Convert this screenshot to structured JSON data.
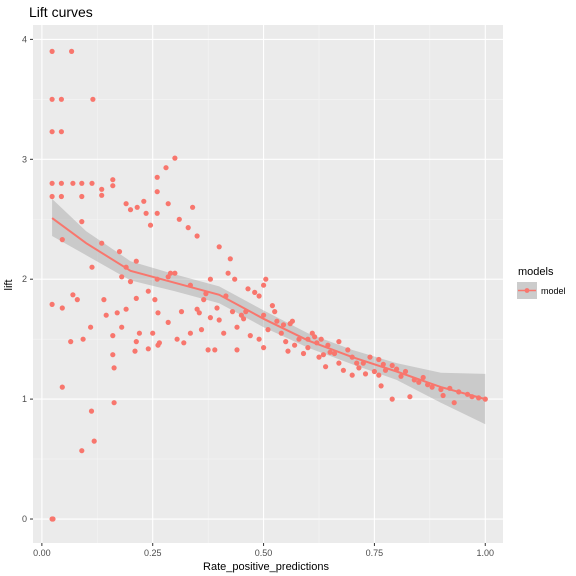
{
  "chart_data": {
    "type": "scatter",
    "title": "Lift curves",
    "xlabel": "Rate_positive_predictions",
    "ylabel": "lift",
    "xlim": [
      -0.02,
      1.04
    ],
    "ylim": [
      -0.2,
      4.12
    ],
    "x_ticks": [
      0.0,
      0.25,
      0.5,
      0.75,
      1.0
    ],
    "x_tick_labels": [
      "0.00",
      "0.25",
      "0.50",
      "0.75",
      "1.00"
    ],
    "y_ticks": [
      0,
      1,
      2,
      3,
      4
    ],
    "y_tick_labels": [
      "0",
      "1",
      "2",
      "3",
      "4"
    ],
    "grid": true,
    "legend": {
      "title": "models",
      "position": "right",
      "entries": [
        "model"
      ]
    },
    "colors": {
      "points": "#F8766D",
      "smooth": "#F8766D",
      "ribbon": "#999999",
      "panel": "#EBEBEB",
      "grid": "#FFFFFF"
    },
    "series": [
      {
        "name": "model",
        "points": [
          [
            0.023,
            3.9
          ],
          [
            0.023,
            3.5
          ],
          [
            0.023,
            3.23
          ],
          [
            0.023,
            2.8
          ],
          [
            0.023,
            2.69
          ],
          [
            0.023,
            1.79
          ],
          [
            0.023,
            0.0
          ],
          [
            0.025,
            0.0
          ],
          [
            0.067,
            3.9
          ],
          [
            0.044,
            3.5
          ],
          [
            0.044,
            3.23
          ],
          [
            0.044,
            2.8
          ],
          [
            0.044,
            2.69
          ],
          [
            0.046,
            2.33
          ],
          [
            0.046,
            1.76
          ],
          [
            0.046,
            1.1
          ],
          [
            0.07,
            2.8
          ],
          [
            0.07,
            1.87
          ],
          [
            0.065,
            1.48
          ],
          [
            0.08,
            1.83
          ],
          [
            0.09,
            2.8
          ],
          [
            0.09,
            2.69
          ],
          [
            0.09,
            2.48
          ],
          [
            0.093,
            1.5
          ],
          [
            0.09,
            0.57
          ],
          [
            0.115,
            3.5
          ],
          [
            0.113,
            2.8
          ],
          [
            0.113,
            2.1
          ],
          [
            0.11,
            1.6
          ],
          [
            0.112,
            0.9
          ],
          [
            0.118,
            0.65
          ],
          [
            0.135,
            2.75
          ],
          [
            0.135,
            2.7
          ],
          [
            0.135,
            2.3
          ],
          [
            0.14,
            1.83
          ],
          [
            0.145,
            1.7
          ],
          [
            0.16,
            2.83
          ],
          [
            0.16,
            2.78
          ],
          [
            0.16,
            1.53
          ],
          [
            0.16,
            1.37
          ],
          [
            0.163,
            1.26
          ],
          [
            0.163,
            0.97
          ],
          [
            0.175,
            2.23
          ],
          [
            0.17,
            1.72
          ],
          [
            0.18,
            2.02
          ],
          [
            0.18,
            1.6
          ],
          [
            0.19,
            2.63
          ],
          [
            0.19,
            2.1
          ],
          [
            0.19,
            1.75
          ],
          [
            0.2,
            2.58
          ],
          [
            0.2,
            1.98
          ],
          [
            0.21,
            1.4
          ],
          [
            0.213,
            1.48
          ],
          [
            0.213,
            1.84
          ],
          [
            0.213,
            2.15
          ],
          [
            0.215,
            2.6
          ],
          [
            0.22,
            1.55
          ],
          [
            0.23,
            2.65
          ],
          [
            0.235,
            2.55
          ],
          [
            0.24,
            1.9
          ],
          [
            0.24,
            1.42
          ],
          [
            0.245,
            2.45
          ],
          [
            0.25,
            1.55
          ],
          [
            0.255,
            1.83
          ],
          [
            0.26,
            2.85
          ],
          [
            0.26,
            2.73
          ],
          [
            0.26,
            2.55
          ],
          [
            0.26,
            2.0
          ],
          [
            0.262,
            1.72
          ],
          [
            0.262,
            1.45
          ],
          [
            0.265,
            1.47
          ],
          [
            0.28,
            2.93
          ],
          [
            0.285,
            2.63
          ],
          [
            0.285,
            2.02
          ],
          [
            0.285,
            1.64
          ],
          [
            0.29,
            2.05
          ],
          [
            0.3,
            3.01
          ],
          [
            0.3,
            2.05
          ],
          [
            0.305,
            1.5
          ],
          [
            0.31,
            2.5
          ],
          [
            0.315,
            1.73
          ],
          [
            0.32,
            1.47
          ],
          [
            0.33,
            2.43
          ],
          [
            0.335,
            1.95
          ],
          [
            0.335,
            1.55
          ],
          [
            0.34,
            2.6
          ],
          [
            0.35,
            2.36
          ],
          [
            0.35,
            1.75
          ],
          [
            0.355,
            1.72
          ],
          [
            0.36,
            1.58
          ],
          [
            0.365,
            1.83
          ],
          [
            0.37,
            1.88
          ],
          [
            0.375,
            1.41
          ],
          [
            0.38,
            2.0
          ],
          [
            0.38,
            1.68
          ],
          [
            0.39,
            1.41
          ],
          [
            0.395,
            1.76
          ],
          [
            0.4,
            2.27
          ],
          [
            0.4,
            1.66
          ],
          [
            0.41,
            1.55
          ],
          [
            0.415,
            1.86
          ],
          [
            0.42,
            2.05
          ],
          [
            0.425,
            2.17
          ],
          [
            0.43,
            1.73
          ],
          [
            0.435,
            2.0
          ],
          [
            0.44,
            1.6
          ],
          [
            0.44,
            1.41
          ],
          [
            0.45,
            1.7
          ],
          [
            0.455,
            1.67
          ],
          [
            0.46,
            1.73
          ],
          [
            0.465,
            1.92
          ],
          [
            0.47,
            1.53
          ],
          [
            0.48,
            1.89
          ],
          [
            0.49,
            1.86
          ],
          [
            0.49,
            1.5
          ],
          [
            0.5,
            1.95
          ],
          [
            0.5,
            1.7
          ],
          [
            0.5,
            1.43
          ],
          [
            0.505,
            2.0
          ],
          [
            0.51,
            1.58
          ],
          [
            0.52,
            1.78
          ],
          [
            0.525,
            1.73
          ],
          [
            0.53,
            1.65
          ],
          [
            0.54,
            1.55
          ],
          [
            0.545,
            1.62
          ],
          [
            0.55,
            1.48
          ],
          [
            0.56,
            1.63
          ],
          [
            0.555,
            1.4
          ],
          [
            0.565,
            1.65
          ],
          [
            0.57,
            1.45
          ],
          [
            0.58,
            1.5
          ],
          [
            0.59,
            1.38
          ],
          [
            0.6,
            1.43
          ],
          [
            0.6,
            1.5
          ],
          [
            0.61,
            1.55
          ],
          [
            0.615,
            1.52
          ],
          [
            0.62,
            1.47
          ],
          [
            0.625,
            1.35
          ],
          [
            0.63,
            1.5
          ],
          [
            0.635,
            1.37
          ],
          [
            0.64,
            1.27
          ],
          [
            0.645,
            1.45
          ],
          [
            0.65,
            1.39
          ],
          [
            0.66,
            1.38
          ],
          [
            0.67,
            1.3
          ],
          [
            0.67,
            1.48
          ],
          [
            0.68,
            1.24
          ],
          [
            0.69,
            1.41
          ],
          [
            0.7,
            1.35
          ],
          [
            0.7,
            1.2
          ],
          [
            0.71,
            1.3
          ],
          [
            0.715,
            1.26
          ],
          [
            0.725,
            1.3
          ],
          [
            0.73,
            1.21
          ],
          [
            0.74,
            1.35
          ],
          [
            0.75,
            1.23
          ],
          [
            0.76,
            1.33
          ],
          [
            0.76,
            1.2
          ],
          [
            0.765,
            1.11
          ],
          [
            0.77,
            1.29
          ],
          [
            0.775,
            1.24
          ],
          [
            0.79,
            1.28
          ],
          [
            0.79,
            1.0
          ],
          [
            0.8,
            1.25
          ],
          [
            0.81,
            1.19
          ],
          [
            0.82,
            1.23
          ],
          [
            0.83,
            1.02
          ],
          [
            0.84,
            1.16
          ],
          [
            0.85,
            1.14
          ],
          [
            0.86,
            1.18
          ],
          [
            0.87,
            1.12
          ],
          [
            0.88,
            1.1
          ],
          [
            0.9,
            1.08
          ],
          [
            0.905,
            1.03
          ],
          [
            0.92,
            1.09
          ],
          [
            0.93,
            0.97
          ],
          [
            0.94,
            1.06
          ],
          [
            0.96,
            1.04
          ],
          [
            0.97,
            1.02
          ],
          [
            0.985,
            1.01
          ],
          [
            1.0,
            1.0
          ]
        ],
        "smooth": {
          "x": [
            0.023,
            0.1,
            0.2,
            0.3,
            0.4,
            0.5,
            0.6,
            0.7,
            0.8,
            0.9,
            1.0
          ],
          "y": [
            2.51,
            2.3,
            2.07,
            1.97,
            1.87,
            1.67,
            1.49,
            1.35,
            1.23,
            1.1,
            1.0
          ],
          "lower": [
            2.36,
            2.2,
            1.99,
            1.9,
            1.8,
            1.6,
            1.43,
            1.29,
            1.16,
            0.97,
            0.79
          ],
          "upper": [
            2.67,
            2.4,
            2.15,
            2.04,
            1.94,
            1.74,
            1.55,
            1.41,
            1.3,
            1.22,
            1.21
          ]
        }
      }
    ]
  }
}
